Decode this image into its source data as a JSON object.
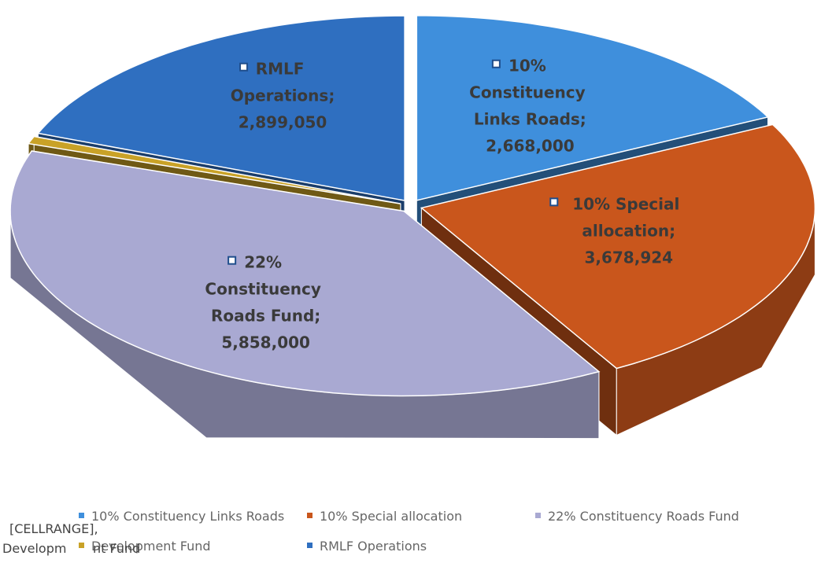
{
  "chart_data": {
    "type": "pie3d",
    "categories": [
      "10% Constituency Links Roads",
      "10% Special allocation",
      "22% Constituency Roads Fund",
      "Development Fund",
      "RMLF Operations"
    ],
    "values": [
      2668000,
      3678924,
      5858000,
      100000,
      2899050
    ],
    "value_labels": [
      "2,668,000",
      "3,678,924",
      "5,858,000",
      null,
      "2,899,050"
    ],
    "separator": ";",
    "colors": [
      "#3f8fdc",
      "#c9561c",
      "#a9a9d2",
      "#c9a227",
      "#2f6fc0"
    ],
    "legend": "bottom",
    "annotations": [
      "[CELLRANGE],",
      "Developm",
      "nt Fund"
    ]
  }
}
